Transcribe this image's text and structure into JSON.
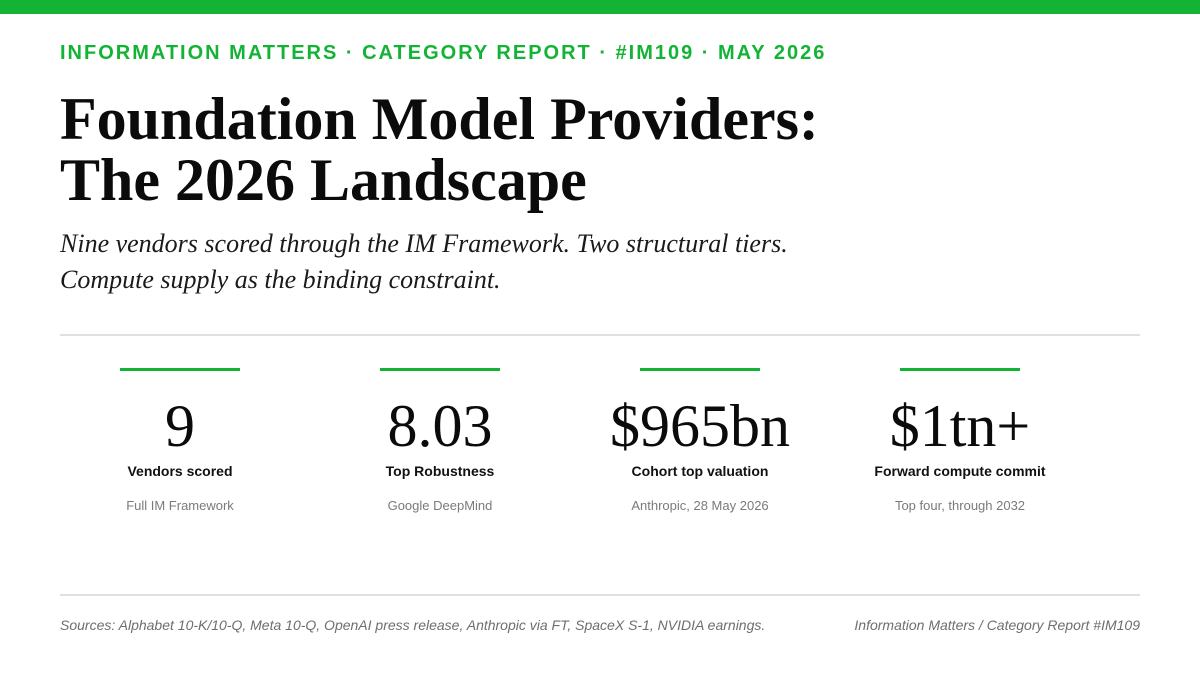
{
  "header": {
    "kicker": "INFORMATION MATTERS · CATEGORY REPORT · #IM109 · MAY 2026",
    "accent_color": "#13b335"
  },
  "title": {
    "line1": "Foundation Model Providers:",
    "line2": "The 2026 Landscape"
  },
  "subtitle": {
    "line1": "Nine vendors scored through the IM Framework. Two structural tiers.",
    "line2": "Compute supply as the binding constraint."
  },
  "stats": [
    {
      "value": "9",
      "label": "Vendors scored",
      "note": "Full IM Framework"
    },
    {
      "value": "8.03",
      "label": "Top Robustness",
      "note": "Google DeepMind"
    },
    {
      "value": "$965bn",
      "label": "Cohort top valuation",
      "note": "Anthropic, 28 May 2026"
    },
    {
      "value": "$1tn+",
      "label": "Forward compute commit",
      "note": "Top four, through 2032"
    }
  ],
  "footer": {
    "sources": "Sources: Alphabet 10-K/10-Q, Meta 10-Q, OpenAI press release, Anthropic via FT, SpaceX S-1, NVIDIA earnings.",
    "publication": "Information Matters / Category Report #IM109"
  }
}
